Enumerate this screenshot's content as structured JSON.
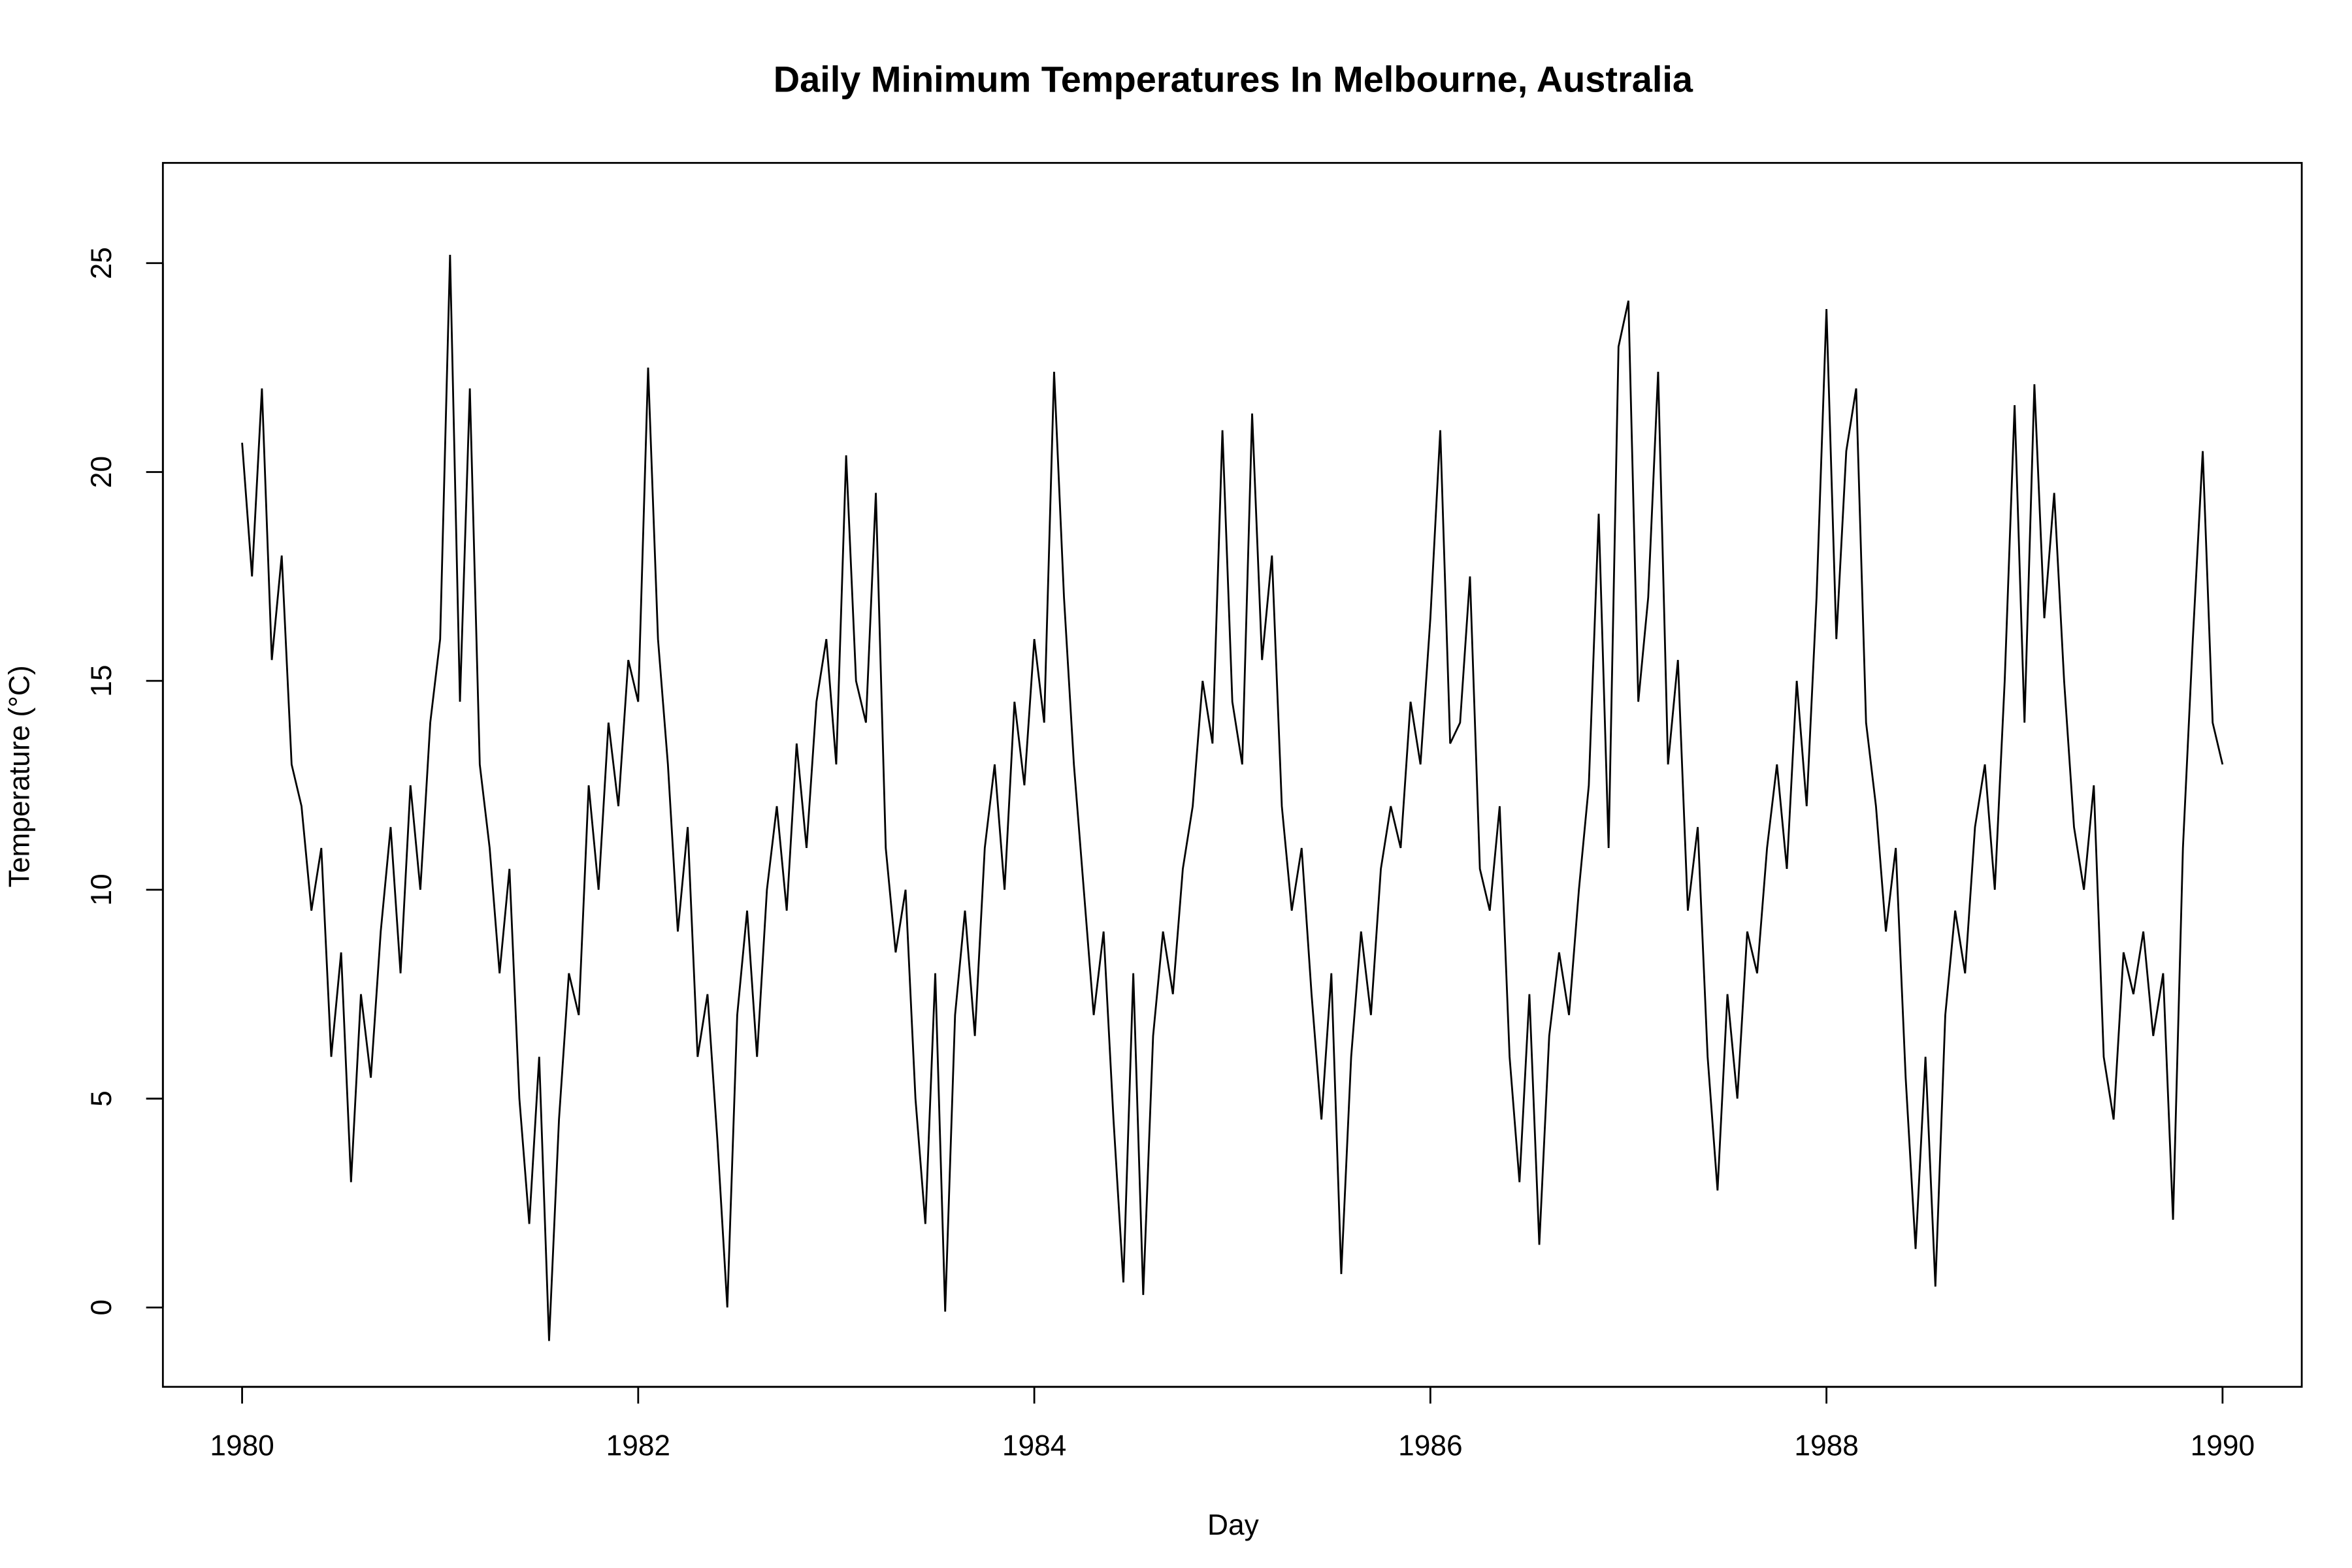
{
  "chart_data": {
    "type": "line",
    "title": "Daily Minimum Temperatures In Melbourne, Australia",
    "x_label": "Day",
    "y_label": "Temperature (°C)",
    "color": "#000000",
    "x": [
      1980,
      1980.05,
      1980.1,
      1980.15,
      1980.2,
      1980.25,
      1980.3,
      1980.35,
      1980.4,
      1980.45,
      1980.5,
      1980.55,
      1980.6,
      1980.65,
      1980.7,
      1980.75,
      1980.8,
      1980.85,
      1980.9,
      1980.95,
      1981,
      1981.05,
      1981.1,
      1981.15,
      1981.2,
      1981.25,
      1981.3,
      1981.35,
      1981.4,
      1981.45,
      1981.5,
      1981.55,
      1981.6,
      1981.65,
      1981.7,
      1981.75,
      1981.8,
      1981.85,
      1981.9,
      1981.95,
      1982,
      1982.05,
      1982.1,
      1982.15,
      1982.2,
      1982.25,
      1982.3,
      1982.35,
      1982.4,
      1982.45,
      1982.5,
      1982.55,
      1982.6,
      1982.65,
      1982.7,
      1982.75,
      1982.8,
      1982.85,
      1982.9,
      1982.95,
      1983,
      1983.05,
      1983.1,
      1983.15,
      1983.2,
      1983.25,
      1983.3,
      1983.35,
      1983.4,
      1983.45,
      1983.5,
      1983.55,
      1983.6,
      1983.65,
      1983.7,
      1983.75,
      1983.8,
      1983.85,
      1983.9,
      1983.95,
      1984,
      1984.05,
      1984.1,
      1984.15,
      1984.2,
      1984.25,
      1984.3,
      1984.35,
      1984.4,
      1984.45,
      1984.5,
      1984.55,
      1984.6,
      1984.65,
      1984.7,
      1984.75,
      1984.8,
      1984.85,
      1984.9,
      1984.95,
      1985,
      1985.05,
      1985.1,
      1985.15,
      1985.2,
      1985.25,
      1985.3,
      1985.35,
      1985.4,
      1985.45,
      1985.5,
      1985.55,
      1985.6,
      1985.65,
      1985.7,
      1985.75,
      1985.8,
      1985.85,
      1985.9,
      1985.95,
      1986,
      1986.05,
      1986.1,
      1986.15,
      1986.2,
      1986.25,
      1986.3,
      1986.35,
      1986.4,
      1986.45,
      1986.5,
      1986.55,
      1986.6,
      1986.65,
      1986.7,
      1986.75,
      1986.8,
      1986.85,
      1986.9,
      1986.95,
      1987,
      1987.05,
      1987.1,
      1987.15,
      1987.2,
      1987.25,
      1987.3,
      1987.35,
      1987.4,
      1987.45,
      1987.5,
      1987.55,
      1987.6,
      1987.65,
      1987.7,
      1987.75,
      1987.8,
      1987.85,
      1987.9,
      1987.95,
      1988,
      1988.05,
      1988.1,
      1988.15,
      1988.2,
      1988.25,
      1988.3,
      1988.35,
      1988.4,
      1988.45,
      1988.5,
      1988.55,
      1988.6,
      1988.65,
      1988.7,
      1988.75,
      1988.8,
      1988.85,
      1988.9,
      1988.95,
      1989,
      1989.05,
      1989.1,
      1989.15,
      1989.2,
      1989.25,
      1989.3,
      1989.35,
      1989.4,
      1989.45,
      1989.5,
      1989.55,
      1989.6,
      1989.65,
      1989.7,
      1989.75,
      1989.8,
      1989.85,
      1989.9,
      1989.95,
      1990
    ],
    "values": [
      20.7,
      17.5,
      22.0,
      15.5,
      18.0,
      13.0,
      12.0,
      9.5,
      11.0,
      6.0,
      8.5,
      3.0,
      7.5,
      5.5,
      9.0,
      11.5,
      8.0,
      12.5,
      10.0,
      14.0,
      16.0,
      25.2,
      14.5,
      22.0,
      13.0,
      11.0,
      8.0,
      10.5,
      5.0,
      2.0,
      6.0,
      -0.8,
      4.5,
      8.0,
      7.0,
      12.5,
      10.0,
      14.0,
      12.0,
      15.5,
      14.5,
      22.5,
      16.0,
      13.0,
      9.0,
      11.5,
      6.0,
      7.5,
      4.0,
      0.0,
      7.0,
      9.5,
      6.0,
      10.0,
      12.0,
      9.5,
      13.5,
      11.0,
      14.5,
      16.0,
      13.0,
      20.4,
      15.0,
      14.0,
      19.5,
      11.0,
      8.5,
      10.0,
      5.0,
      2.0,
      8.0,
      -0.1,
      7.0,
      9.5,
      6.5,
      11.0,
      13.0,
      10.0,
      14.5,
      12.5,
      16.0,
      14.0,
      22.4,
      17.0,
      13.0,
      10.0,
      7.0,
      9.0,
      4.5,
      0.6,
      8.0,
      0.3,
      6.5,
      9.0,
      7.5,
      10.5,
      12.0,
      15.0,
      13.5,
      21.0,
      14.5,
      13.0,
      21.4,
      15.5,
      18.0,
      12.0,
      9.5,
      11.0,
      7.5,
      4.5,
      8.0,
      0.8,
      6.0,
      9.0,
      7.0,
      10.5,
      12.0,
      11.0,
      14.5,
      13.0,
      16.5,
      21.0,
      13.5,
      14.0,
      17.5,
      10.5,
      9.5,
      12.0,
      6.0,
      3.0,
      7.5,
      1.5,
      6.5,
      8.5,
      7.0,
      10.0,
      12.5,
      19.0,
      11.0,
      23.0,
      24.1,
      14.5,
      17.0,
      22.4,
      13.0,
      15.5,
      9.5,
      11.5,
      6.0,
      2.8,
      7.5,
      5.0,
      9.0,
      8.0,
      11.0,
      13.0,
      10.5,
      15.0,
      12.0,
      17.0,
      23.9,
      16.0,
      20.5,
      22.0,
      14.0,
      12.0,
      9.0,
      11.0,
      5.5,
      1.4,
      6.0,
      0.5,
      7.0,
      9.5,
      8.0,
      11.5,
      13.0,
      10.0,
      15.0,
      21.6,
      14.0,
      22.1,
      16.5,
      19.5,
      15.0,
      11.5,
      10.0,
      12.5,
      6.0,
      4.5,
      8.5,
      7.5,
      9.0,
      6.5,
      8.0,
      2.1,
      11.0,
      16.0,
      20.5,
      14.0,
      13.0
    ],
    "xlim": [
      1979.6,
      1990.4
    ],
    "ylim": [
      -1.9,
      27.4
    ],
    "xticks": [
      1980,
      1982,
      1984,
      1986,
      1988,
      1990
    ],
    "yticks": [
      0,
      5,
      10,
      15,
      20,
      25
    ]
  }
}
